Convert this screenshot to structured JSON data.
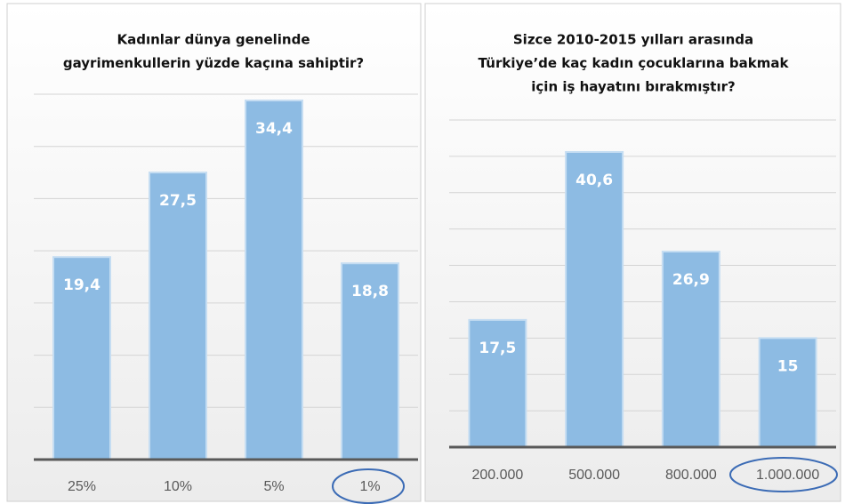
{
  "chart_data": [
    {
      "type": "bar",
      "title": [
        "Kadınlar dünya genelinde",
        "gayrimenkullerin yüzde kaçına sahiptir?"
      ],
      "categories": [
        "25%",
        "10%",
        "5%",
        "1%"
      ],
      "values": [
        19.4,
        27.5,
        34.4,
        18.8
      ],
      "value_labels": [
        "19,4",
        "27,5",
        "34,4",
        "18,8"
      ],
      "color": "#8dbbe3",
      "ylim": [
        0,
        35
      ],
      "yticks": [
        0,
        5,
        10,
        15,
        20,
        25,
        30,
        35
      ],
      "grid": true
    },
    {
      "type": "bar",
      "title": [
        "Sizce 2010-2015 yılları arasında",
        "Türkiye’de kaç kadın çocuklarına bakmak",
        "için iş hayatını bırakmıştır?"
      ],
      "categories": [
        "200.000",
        "500.000",
        "800.000",
        "1.000.000"
      ],
      "values": [
        17.5,
        40.6,
        26.9,
        15
      ],
      "value_labels": [
        "17,5",
        "40,6",
        "26,9",
        "15"
      ],
      "color": "#8dbbe3",
      "ylim": [
        0,
        45
      ],
      "yticks": [
        0,
        5,
        10,
        15,
        20,
        25,
        30,
        35,
        40,
        45
      ],
      "grid": true
    }
  ]
}
